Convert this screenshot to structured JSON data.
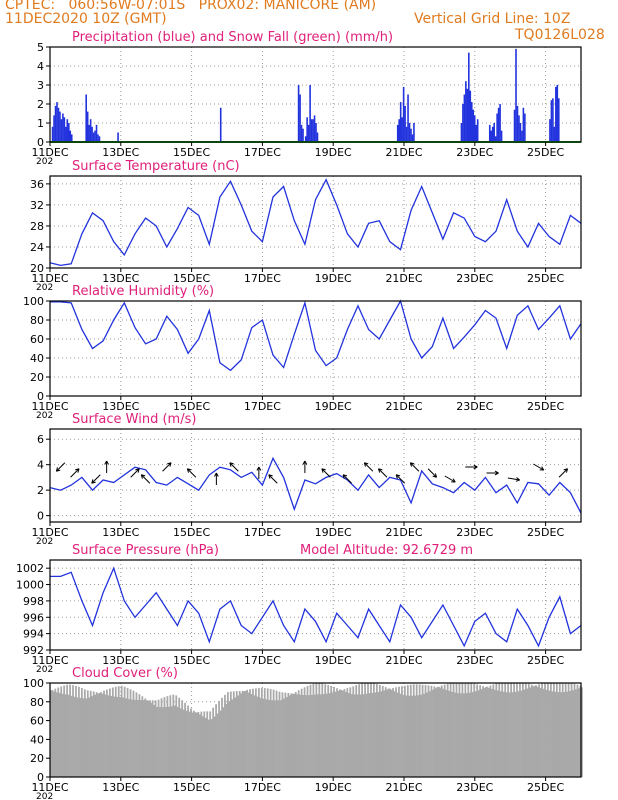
{
  "header": {
    "line1": "CPTEC:   060:56W-07:01S   PROX02: MANICORE (AM)",
    "line2": "11DEC2020 10Z (GMT)",
    "grid_note": "Vertical Grid Line: 10Z",
    "code": "TQ0126L028"
  },
  "colors": {
    "header": "#e07b1f",
    "title": "#e0207a",
    "series": "#2233dd",
    "snow": "#22aa22",
    "cloud": "#a9a9a9"
  },
  "x_axis": {
    "ticks": [
      "11DEC",
      "13DEC",
      "15DEC",
      "17DEC",
      "19DEC",
      "21DEC",
      "23DEC",
      "25DEC"
    ],
    "tick_days": [
      0,
      2,
      4,
      6,
      8,
      10,
      12,
      14
    ],
    "range_days": [
      0,
      15
    ],
    "year_label": "202"
  },
  "chart_data": [
    {
      "type": "bar",
      "title": "Precipitation (blue) and Snow Fall (green) (mm/h)",
      "ylim": [
        0,
        5
      ],
      "yticks": [
        0,
        1,
        2,
        3,
        4,
        5
      ],
      "events": [
        {
          "day": 0.05,
          "values": [
            0.8,
            1.4,
            1.9,
            2.1,
            1.8,
            1.6,
            1.2,
            1.5,
            1.3,
            0.8,
            1.2,
            1.0,
            0.6,
            0.4
          ]
        },
        {
          "day": 1.0,
          "values": [
            2.5,
            1.6,
            0.9,
            1.2,
            0.8,
            0.5,
            0.6,
            0.9,
            0.4,
            0.3
          ]
        },
        {
          "day": 1.9,
          "values": [
            0.5
          ]
        },
        {
          "day": 4.8,
          "values": [
            1.8
          ]
        },
        {
          "day": 7.0,
          "values": [
            3.0,
            2.5,
            0.9,
            0.7
          ]
        },
        {
          "day": 7.2,
          "values": [
            0.3,
            1.3,
            0.9,
            3.0,
            1.2,
            1.2,
            1.4,
            1.0,
            0.5
          ]
        },
        {
          "day": 9.8,
          "values": [
            0.9,
            1.2,
            2.1,
            1.3,
            2.9,
            1.9,
            0.8,
            2.5,
            1.0,
            0.7,
            0.4,
            1.0
          ]
        },
        {
          "day": 11.6,
          "values": [
            1.0,
            2.0,
            2.5,
            3.2,
            2.8,
            4.7,
            2.7,
            2.1,
            1.7,
            1.4,
            0.9,
            1.2
          ]
        },
        {
          "day": 12.4,
          "values": [
            0.9,
            0.6,
            0.8,
            1.0,
            0.3,
            1.5,
            1.8,
            2.0,
            0.6
          ]
        },
        {
          "day": 13.1,
          "values": [
            1.7,
            4.9,
            1.9,
            1.4,
            1.0,
            0.6,
            1.8,
            1.5
          ]
        },
        {
          "day": 14.1,
          "values": [
            1.2,
            2.2,
            2.3,
            0.8,
            2.9,
            3.0,
            2.3
          ]
        }
      ],
      "snow_line": 0
    },
    {
      "type": "line",
      "title": "Surface Temperature (nC)",
      "ylim": [
        20,
        37.5
      ],
      "yticks": [
        20,
        24,
        28,
        32,
        36
      ],
      "x": [
        0,
        0.3,
        0.6,
        0.9,
        1.2,
        1.5,
        1.8,
        2.1,
        2.4,
        2.7,
        3.0,
        3.3,
        3.6,
        3.9,
        4.2,
        4.5,
        4.8,
        5.1,
        5.4,
        5.7,
        6.0,
        6.3,
        6.6,
        6.9,
        7.2,
        7.5,
        7.8,
        8.1,
        8.4,
        8.7,
        9.0,
        9.3,
        9.6,
        9.9,
        10.2,
        10.5,
        10.8,
        11.1,
        11.4,
        11.7,
        12.0,
        12.3,
        12.6,
        12.9,
        13.2,
        13.5,
        13.8,
        14.1,
        14.4,
        14.7,
        15.0
      ],
      "values": [
        21.0,
        20.5,
        20.8,
        26.5,
        30.5,
        29.0,
        25.0,
        22.5,
        26.5,
        29.5,
        28.0,
        24.0,
        27.5,
        31.5,
        30.0,
        24.5,
        33.5,
        36.5,
        32.0,
        27.0,
        25.0,
        33.5,
        35.5,
        29.0,
        24.5,
        33.0,
        36.8,
        32.0,
        26.5,
        24.0,
        28.5,
        29.0,
        25.0,
        23.5,
        31.0,
        35.5,
        30.5,
        25.5,
        30.5,
        29.5,
        26.0,
        25.0,
        27.0,
        33.0,
        27.0,
        24.0,
        28.5,
        26.0,
        24.5,
        30.0,
        28.5
      ],
      "note": "values approximated from plotted curve"
    },
    {
      "type": "line",
      "title": "Relative Humidity (%)",
      "ylim": [
        0,
        100
      ],
      "yticks": [
        0,
        20,
        40,
        60,
        80,
        100
      ],
      "x": [
        0,
        0.3,
        0.6,
        0.9,
        1.2,
        1.5,
        1.8,
        2.1,
        2.4,
        2.7,
        3.0,
        3.3,
        3.6,
        3.9,
        4.2,
        4.5,
        4.8,
        5.1,
        5.4,
        5.7,
        6.0,
        6.3,
        6.6,
        6.9,
        7.2,
        7.5,
        7.8,
        8.1,
        8.4,
        8.7,
        9.0,
        9.3,
        9.6,
        9.9,
        10.2,
        10.5,
        10.8,
        11.1,
        11.4,
        11.7,
        12.0,
        12.3,
        12.6,
        12.9,
        13.2,
        13.5,
        13.8,
        14.1,
        14.4,
        14.7,
        15.0
      ],
      "values": [
        99.0,
        99.0,
        98.0,
        70.0,
        50.0,
        58.0,
        80.0,
        98.0,
        72.0,
        55.0,
        60.0,
        84.0,
        70.0,
        45.0,
        60.0,
        90.0,
        35.0,
        27.0,
        38.0,
        72.0,
        80.0,
        43.0,
        30.0,
        65.0,
        98.0,
        48.0,
        32.0,
        40.0,
        70.0,
        95.0,
        70.0,
        60.0,
        80.0,
        100.0,
        60.0,
        40.0,
        52.0,
        82.0,
        50.0,
        62.0,
        75.0,
        90.0,
        82.0,
        50.0,
        85.0,
        95.0,
        70.0,
        82.0,
        95.0,
        60.0,
        76.0
      ]
    },
    {
      "type": "line",
      "title": "Surface Wind (m/s)",
      "ylim": [
        -0.5,
        6.8
      ],
      "yticks": [
        0,
        2,
        4,
        6
      ],
      "x": [
        0,
        0.3,
        0.6,
        0.9,
        1.2,
        1.5,
        1.8,
        2.1,
        2.4,
        2.7,
        3.0,
        3.3,
        3.6,
        3.9,
        4.2,
        4.5,
        4.8,
        5.1,
        5.4,
        5.7,
        6.0,
        6.3,
        6.6,
        6.9,
        7.2,
        7.5,
        7.8,
        8.1,
        8.4,
        8.7,
        9.0,
        9.3,
        9.6,
        9.9,
        10.2,
        10.5,
        10.8,
        11.1,
        11.4,
        11.7,
        12.0,
        12.3,
        12.6,
        12.9,
        13.2,
        13.5,
        13.8,
        14.1,
        14.4,
        14.7,
        15.0
      ],
      "values": [
        2.2,
        2.0,
        2.4,
        3.0,
        2.0,
        2.8,
        2.6,
        3.2,
        3.8,
        3.6,
        2.6,
        2.4,
        3.0,
        2.5,
        2.0,
        3.2,
        3.8,
        3.6,
        3.0,
        3.4,
        2.4,
        4.5,
        3.0,
        0.5,
        2.8,
        2.5,
        3.0,
        3.3,
        2.8,
        2.0,
        3.2,
        2.2,
        3.0,
        2.8,
        1.0,
        3.5,
        2.5,
        2.2,
        1.8,
        2.6,
        2.0,
        3.0,
        1.8,
        2.4,
        1.0,
        2.6,
        2.5,
        1.6,
        2.6,
        1.8,
        0.2
      ],
      "arrows": [
        {
          "day": 0.3,
          "angle": 225
        },
        {
          "day": 0.7,
          "angle": 45
        },
        {
          "day": 1.3,
          "angle": 225
        },
        {
          "day": 1.6,
          "angle": 90
        },
        {
          "day": 2.4,
          "angle": 45
        },
        {
          "day": 2.7,
          "angle": 135
        },
        {
          "day": 3.3,
          "angle": 45
        },
        {
          "day": 4.0,
          "angle": 135
        },
        {
          "day": 4.7,
          "angle": 90
        },
        {
          "day": 5.2,
          "angle": 135
        },
        {
          "day": 5.9,
          "angle": 90
        },
        {
          "day": 6.3,
          "angle": 135
        },
        {
          "day": 7.2,
          "angle": 90
        },
        {
          "day": 7.8,
          "angle": 135
        },
        {
          "day": 8.4,
          "angle": 135
        },
        {
          "day": 9.0,
          "angle": 135
        },
        {
          "day": 9.4,
          "angle": 135
        },
        {
          "day": 9.9,
          "angle": 135
        },
        {
          "day": 10.3,
          "angle": 135
        },
        {
          "day": 10.8,
          "angle": 315
        },
        {
          "day": 11.3,
          "angle": 330
        },
        {
          "day": 11.9,
          "angle": 0
        },
        {
          "day": 12.5,
          "angle": 0
        },
        {
          "day": 13.1,
          "angle": 350
        },
        {
          "day": 13.8,
          "angle": 330
        },
        {
          "day": 14.5,
          "angle": 45
        }
      ]
    },
    {
      "type": "line",
      "title": "Surface Pressure (hPa)",
      "annotation": "Model Altitude: 92.6729 m",
      "ylim": [
        992,
        1003
      ],
      "yticks": [
        992,
        994,
        996,
        998,
        1000,
        1002
      ],
      "x": [
        0,
        0.3,
        0.6,
        0.9,
        1.2,
        1.5,
        1.8,
        2.1,
        2.4,
        2.7,
        3.0,
        3.3,
        3.6,
        3.9,
        4.2,
        4.5,
        4.8,
        5.1,
        5.4,
        5.7,
        6.0,
        6.3,
        6.6,
        6.9,
        7.2,
        7.5,
        7.8,
        8.1,
        8.4,
        8.7,
        9.0,
        9.3,
        9.6,
        9.9,
        10.2,
        10.5,
        10.8,
        11.1,
        11.4,
        11.7,
        12.0,
        12.3,
        12.6,
        12.9,
        13.2,
        13.5,
        13.8,
        14.1,
        14.4,
        14.7,
        15.0
      ],
      "values": [
        1001.0,
        1001.0,
        1001.5,
        998.0,
        995.0,
        999.0,
        1002.0,
        998.0,
        996.0,
        997.5,
        999.0,
        997.0,
        995.0,
        998.0,
        996.5,
        993.0,
        997.0,
        998.0,
        995.0,
        994.0,
        996.0,
        998.0,
        995.0,
        993.0,
        997.0,
        995.5,
        993.0,
        996.5,
        995.0,
        993.5,
        997.0,
        995.0,
        993.0,
        997.5,
        996.0,
        993.5,
        995.5,
        997.5,
        995.0,
        992.5,
        995.5,
        996.5,
        994.0,
        993.0,
        997.0,
        995.0,
        992.5,
        996.0,
        998.5,
        994.0,
        995.0
      ]
    },
    {
      "type": "area",
      "title": "Cloud Cover (%)",
      "ylim": [
        0,
        100
      ],
      "yticks": [
        0,
        20,
        40,
        60,
        80,
        100
      ],
      "x": [
        0,
        0.5,
        1.0,
        1.5,
        2.0,
        2.5,
        3.0,
        3.5,
        4.0,
        4.5,
        5.0,
        5.5,
        6.0,
        6.5,
        7.0,
        7.5,
        8.0,
        8.5,
        9.0,
        9.5,
        10.0,
        10.5,
        11.0,
        11.5,
        12.0,
        12.5,
        13.0,
        13.5,
        14.0,
        14.5,
        15.0
      ],
      "values": [
        92,
        93,
        88,
        90,
        91,
        85,
        78,
        82,
        70,
        65,
        85,
        92,
        89,
        86,
        90,
        94,
        93,
        92,
        95,
        94,
        92,
        93,
        96,
        95,
        95,
        96,
        96,
        97,
        97,
        96,
        96
      ]
    }
  ]
}
